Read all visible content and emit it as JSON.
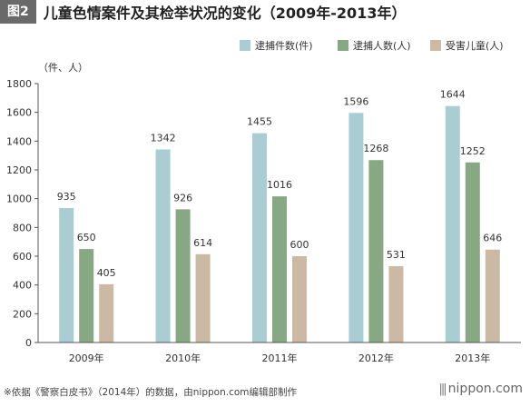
{
  "header": {
    "tag": "图2",
    "title": "儿童色情案件及其检举状况的变化（2009年-2013年）"
  },
  "colors": {
    "series": [
      "#a9cdd3",
      "#86a883",
      "#cbb9a3"
    ],
    "axis": "#555555",
    "tag_bg": "#6a6a6a"
  },
  "chart_data": {
    "type": "bar",
    "unit_label": "（件、人）",
    "categories": [
      "2009年",
      "2010年",
      "2011年",
      "2012年",
      "2013年"
    ],
    "series": [
      {
        "name": "逮捕件数(件)",
        "values": [
          935,
          1342,
          1455,
          1596,
          1644
        ]
      },
      {
        "name": "逮捕人数(人)",
        "values": [
          650,
          926,
          1016,
          1268,
          1252
        ]
      },
      {
        "name": "受害儿童(人)",
        "values": [
          405,
          614,
          600,
          531,
          646
        ]
      }
    ],
    "ylim": [
      0,
      1800
    ],
    "yticks": [
      0,
      200,
      400,
      600,
      800,
      1000,
      1200,
      1400,
      1600,
      1800
    ],
    "legend_position": "top-right",
    "grid": false
  },
  "footer": {
    "source": "※依据《警察白皮书》（2014年）的数据，由nippon.com编辑部制作",
    "logo_mark": "|||",
    "logo_text": "nippon.com"
  }
}
